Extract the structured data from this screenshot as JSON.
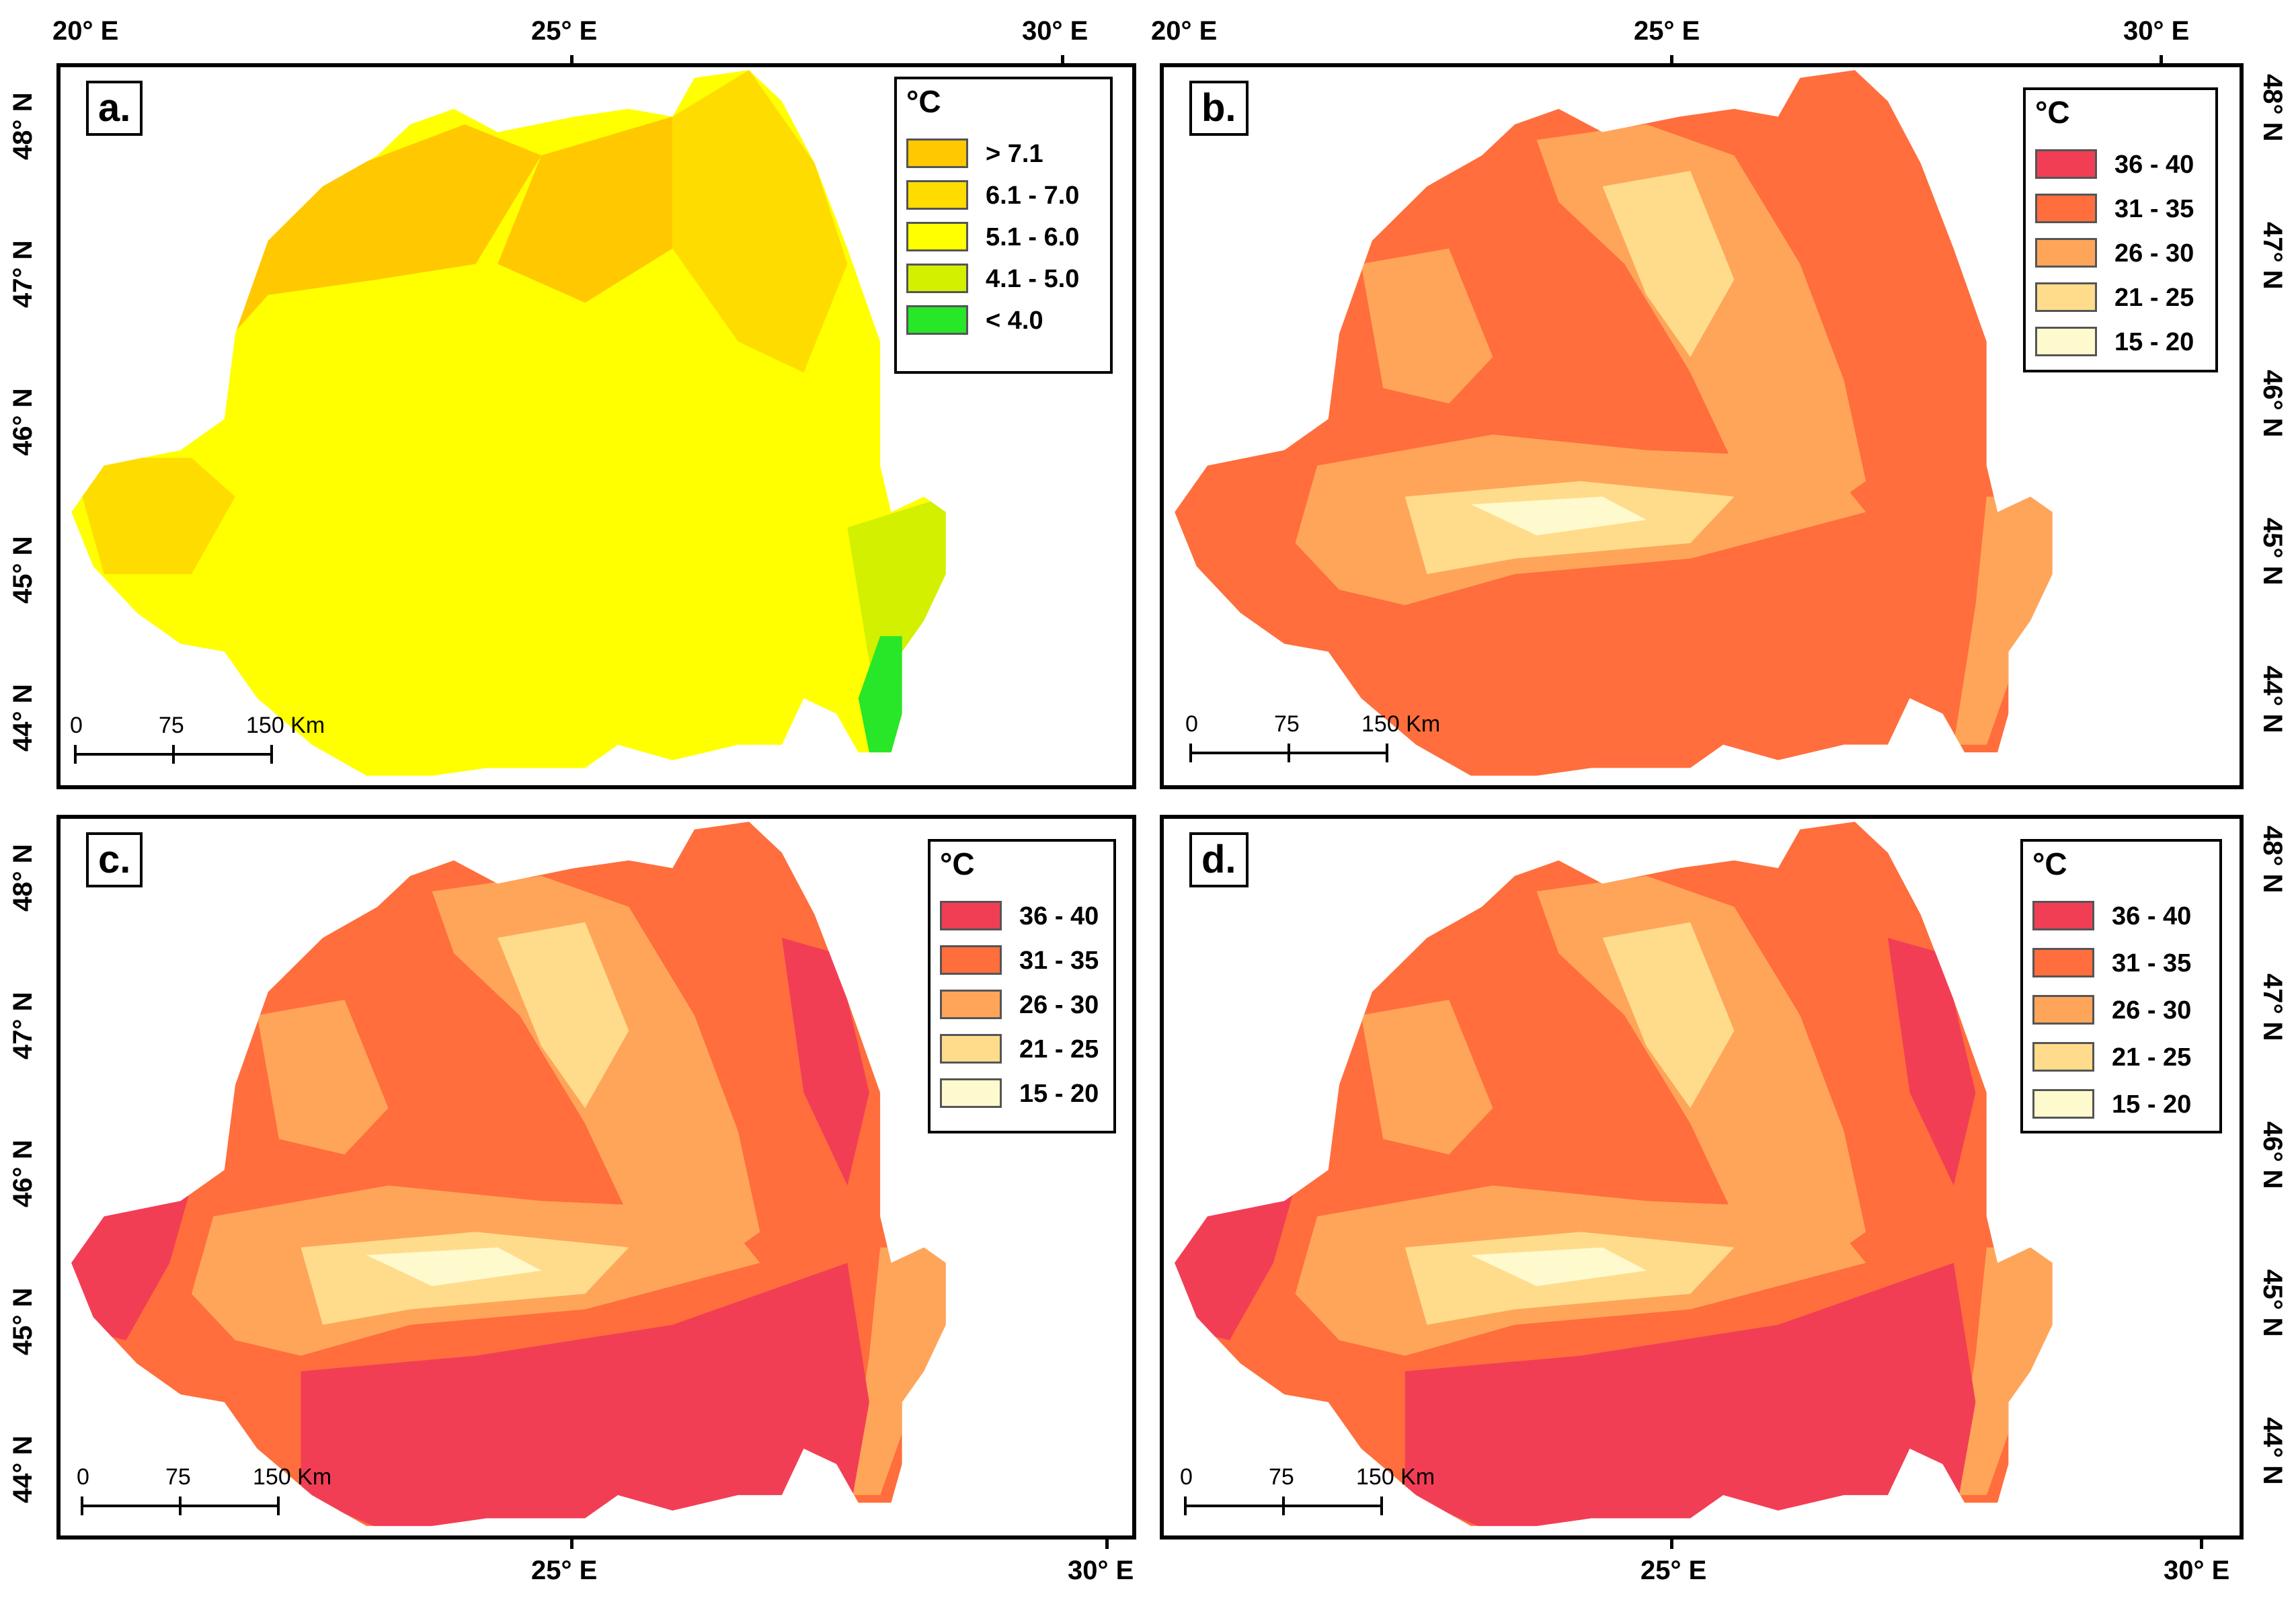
{
  "panels": [
    {
      "id": "a",
      "label": "a.",
      "legend_title": "°C",
      "palette": "mean",
      "legend": [
        {
          "label": "> 7.1",
          "color": "#FFC800"
        },
        {
          "label": "6.1 - 7.0",
          "color": "#FFDC00"
        },
        {
          "label": "5.1 - 6.0",
          "color": "#FFFF00"
        },
        {
          "label": "4.1 - 5.0",
          "color": "#D2F000"
        },
        {
          "label": "< 4.0",
          "color": "#28E628"
        }
      ]
    },
    {
      "id": "b",
      "label": "b.",
      "legend_title": "°C",
      "palette": "max",
      "legend": [
        {
          "label": "36 - 40",
          "color": "#F23E55"
        },
        {
          "label": "31 - 35",
          "color": "#FF6E3C"
        },
        {
          "label": "26 - 30",
          "color": "#FFA55A"
        },
        {
          "label": "21 - 25",
          "color": "#FFDC8C"
        },
        {
          "label": "15 - 20",
          "color": "#FFFACD"
        }
      ]
    },
    {
      "id": "c",
      "label": "c.",
      "legend_title": "°C",
      "palette": "max",
      "legend": [
        {
          "label": "36 - 40",
          "color": "#F23E55"
        },
        {
          "label": "31 - 35",
          "color": "#FF6E3C"
        },
        {
          "label": "26 - 30",
          "color": "#FFA55A"
        },
        {
          "label": "21 - 25",
          "color": "#FFDC8C"
        },
        {
          "label": "15 - 20",
          "color": "#FFFACD"
        }
      ]
    },
    {
      "id": "d",
      "label": "d.",
      "legend_title": "°C",
      "palette": "max",
      "legend": [
        {
          "label": "36 - 40",
          "color": "#F23E55"
        },
        {
          "label": "31 - 35",
          "color": "#FF6E3C"
        },
        {
          "label": "26 - 30",
          "color": "#FFA55A"
        },
        {
          "label": "21 - 25",
          "color": "#FFDC8C"
        },
        {
          "label": "15 - 20",
          "color": "#FFFACD"
        }
      ]
    }
  ],
  "scale_bar": {
    "labels": [
      "0",
      "75",
      "150 Km"
    ]
  },
  "lon_labels": [
    "20° E",
    "25° E",
    "30° E"
  ],
  "lat_labels": [
    "48° N",
    "47° N",
    "46° N",
    "45° N",
    "44° N"
  ]
}
